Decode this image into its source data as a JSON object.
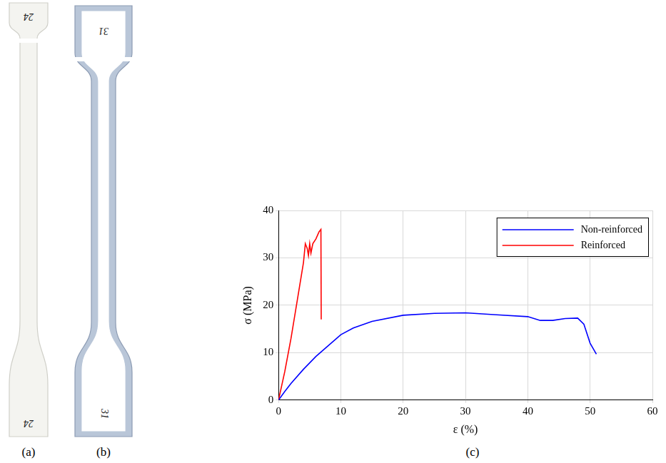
{
  "panels": [
    {
      "label": "(a)",
      "marks": [
        "24",
        "24"
      ]
    },
    {
      "label": "(b)",
      "marks": [
        "31",
        "31"
      ]
    },
    {
      "label": "(c)"
    }
  ],
  "chart_data": {
    "type": "line",
    "xlabel": "ε (%)",
    "ylabel": "σ (MPa)",
    "xlim": [
      0,
      60
    ],
    "xticks": [
      0,
      10,
      20,
      30,
      40,
      50,
      60
    ],
    "ylim": [
      0,
      40
    ],
    "yticks": [
      0,
      10,
      20,
      30,
      40
    ],
    "grid": true,
    "legend": "upper right",
    "series": [
      {
        "name": "Non-reinforced",
        "color": "#0000ff",
        "x": [
          0,
          1,
          2,
          4,
          6,
          8,
          10,
          12,
          15,
          20,
          25,
          30,
          35,
          40,
          42,
          44,
          46,
          48,
          49,
          50,
          51
        ],
        "values": [
          0,
          1.8,
          3.5,
          6.5,
          9.2,
          11.5,
          13.8,
          15.2,
          16.6,
          17.9,
          18.3,
          18.4,
          18.0,
          17.6,
          16.8,
          16.8,
          17.2,
          17.3,
          16.0,
          12.0,
          9.7
        ]
      },
      {
        "name": "Reinforced",
        "color": "#ff0000",
        "x": [
          0,
          1,
          2,
          3,
          4,
          4.3,
          4.6,
          4.8,
          5.0,
          5.2,
          5.5,
          6.0,
          6.5,
          6.8,
          6.85
        ],
        "values": [
          0,
          6,
          13,
          21,
          29,
          33,
          32,
          30.5,
          33,
          31,
          33,
          34,
          35.5,
          36,
          17
        ]
      }
    ]
  }
}
